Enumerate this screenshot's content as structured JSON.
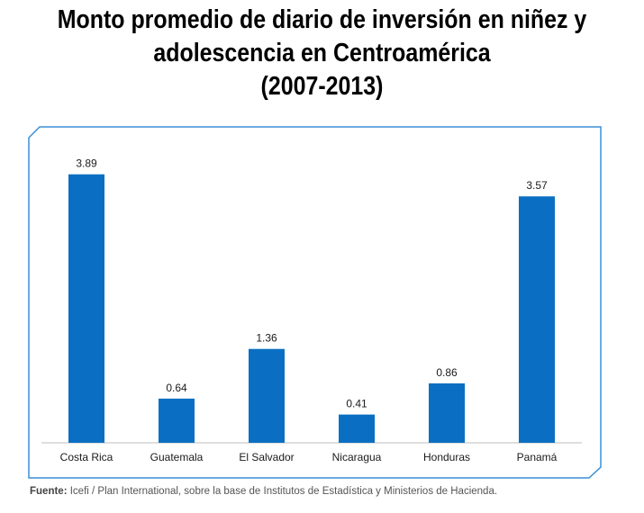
{
  "colors": {
    "bar": "#0a6fc2",
    "frame": "#3a8fd6",
    "text": "#1a1a1a"
  },
  "chart_data": {
    "type": "bar",
    "title_lines": [
      "Monto promedio de diario de inversión en niñez y",
      "adolescencia en Centroamérica",
      "(2007-2013)"
    ],
    "categories": [
      "Costa Rica",
      "Guatemala",
      "El Salvador",
      "Nicaragua",
      "Honduras",
      "Panamá"
    ],
    "values": [
      3.89,
      0.64,
      1.36,
      0.41,
      0.86,
      3.57
    ],
    "value_labels": [
      "3.89",
      "0.64",
      "1.36",
      "0.41",
      "0.86",
      "3.57"
    ],
    "ylim": [
      0,
      4.29
    ],
    "grid": false,
    "legend": "none",
    "xlabel": "",
    "ylabel": ""
  },
  "source": {
    "label": "Fuente:",
    "text": " Icefi / Plan International, sobre la base de Institutos de Estadística y Ministerios de Hacienda."
  }
}
